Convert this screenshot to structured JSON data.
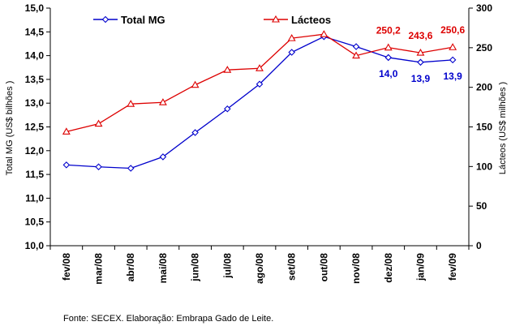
{
  "chart_data": {
    "type": "line",
    "categories": [
      "fev/08",
      "mar/08",
      "abr/08",
      "mai/08",
      "jun/08",
      "jul/08",
      "ago/08",
      "set/08",
      "out/08",
      "nov/08",
      "dez/08",
      "jan/09",
      "fev/09"
    ],
    "series": [
      {
        "name": "Total MG",
        "axis": "left",
        "color": "#0000cc",
        "marker": "diamond",
        "values": [
          11.7,
          11.66,
          11.63,
          11.87,
          12.38,
          12.88,
          13.4,
          14.07,
          14.4,
          14.19,
          13.96,
          13.86,
          13.91
        ]
      },
      {
        "name": "Lácteos",
        "axis": "right",
        "color": "#dd0000",
        "marker": "triangle",
        "values": [
          144,
          154,
          179,
          181,
          203,
          222,
          224,
          262,
          267,
          240,
          250.2,
          243.6,
          250.6
        ]
      }
    ],
    "y_left": {
      "label": "Total MG  (US$ bilhões )",
      "min": 10.0,
      "max": 15.0,
      "ticks": [
        "10,0",
        "10,5",
        "11,0",
        "11,5",
        "12,0",
        "12,5",
        "13,0",
        "13,5",
        "14,0",
        "14,5",
        "15,0"
      ]
    },
    "y_right": {
      "label": "Lácteos  (US$ milhões )",
      "min": 0,
      "max": 300,
      "ticks": [
        "0",
        "50",
        "100",
        "150",
        "200",
        "250",
        "300"
      ]
    },
    "grid": false,
    "legend": {
      "placement": "top",
      "items": [
        "Total MG",
        "Lácteos"
      ]
    },
    "data_labels": [
      {
        "series": 1,
        "index": 10,
        "text": "250,2"
      },
      {
        "series": 1,
        "index": 11,
        "text": "243,6"
      },
      {
        "series": 1,
        "index": 12,
        "text": "250,6"
      },
      {
        "series": 0,
        "index": 10,
        "text": "14,0"
      },
      {
        "series": 0,
        "index": 11,
        "text": "13,9"
      },
      {
        "series": 0,
        "index": 12,
        "text": "13,9"
      }
    ]
  },
  "source_note": "Fonte: SECEX. Elaboração: Embrapa Gado de Leite."
}
